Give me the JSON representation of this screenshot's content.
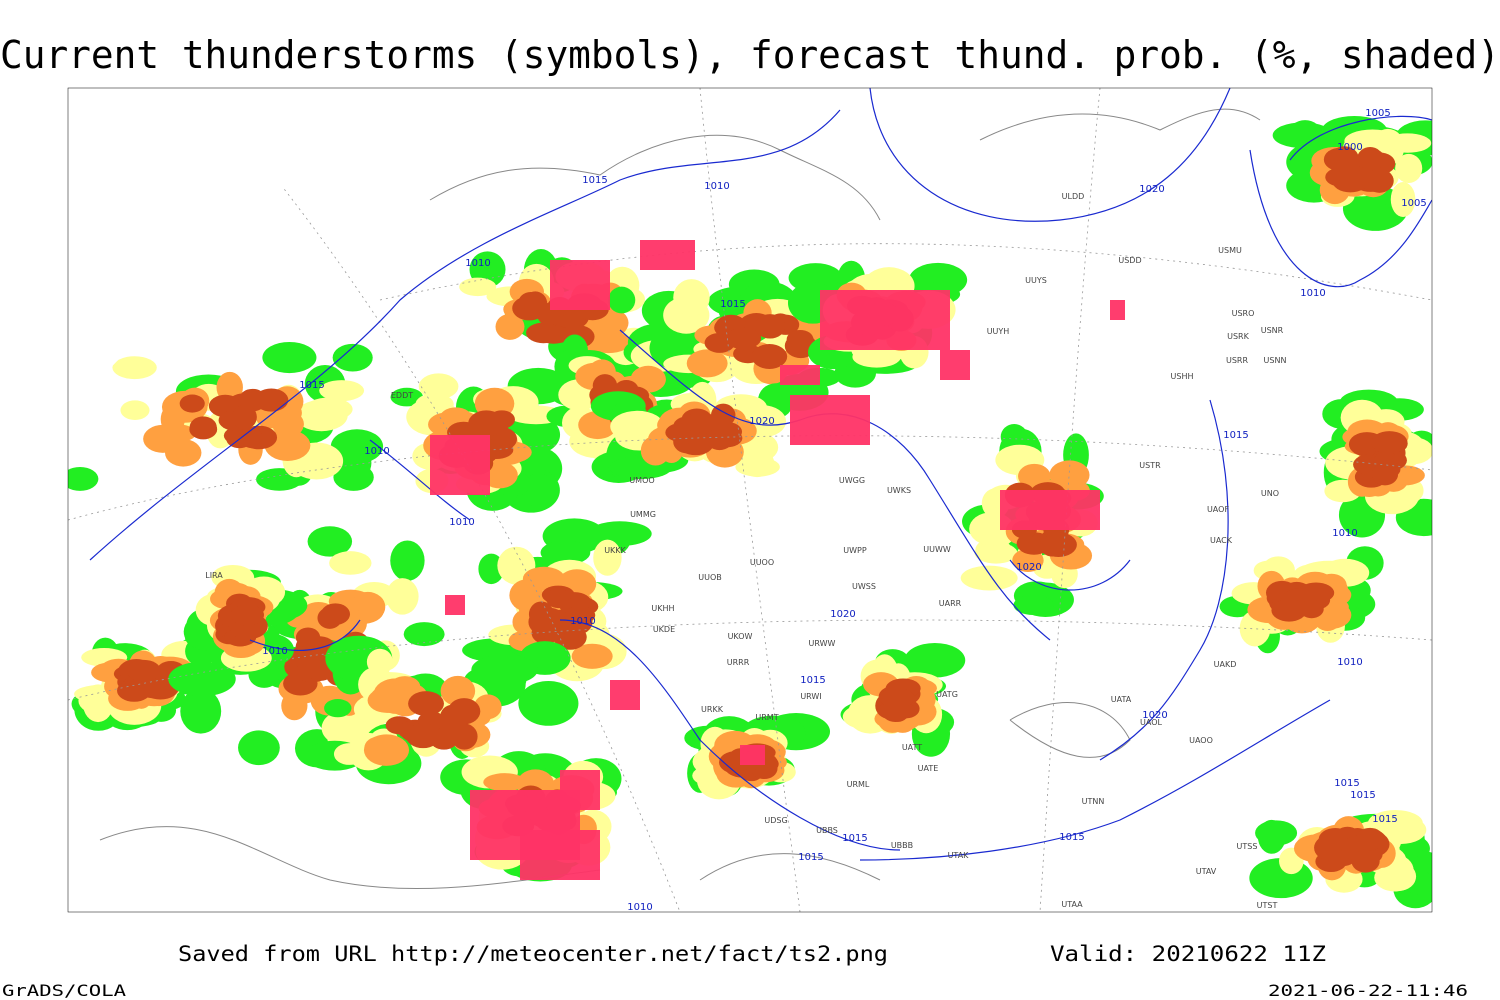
{
  "title": "Current thunderstorms (symbols), forecast thund. prob. (%, shaded)",
  "footer": {
    "source": "Saved from URL http://meteocenter.net/fact/ts2.png",
    "valid": "Valid: 20210622 11Z",
    "software": "GrADS/COLA",
    "timestamp": "2021-06-22-11:46"
  },
  "map": {
    "isobar_labels": [
      1015,
      1010,
      1020,
      1005,
      1000,
      1005,
      1010,
      1015,
      1010,
      1015,
      1020,
      1015,
      1010,
      1010,
      1010,
      1020,
      1010,
      1020,
      1010,
      1015,
      1010,
      1020,
      1015,
      1015,
      1015,
      1015,
      1015,
      1015,
      1010
    ],
    "station_labels": [
      "ULDD",
      "USMU",
      "USDD",
      "UUYS",
      "USRO",
      "USNR",
      "USRK",
      "UUYH",
      "USRR",
      "USNN",
      "USHH",
      "EDDT",
      "USTR",
      "UNO",
      "UUWW",
      "UWPP",
      "UUOO",
      "UWSS",
      "UARR",
      "UKHH",
      "UKDE",
      "UKOW",
      "URRR",
      "URWW",
      "URWI",
      "UATG",
      "UATA",
      "UAOL",
      "UAOO",
      "UAKD",
      "URKK",
      "URMT",
      "UATT",
      "UATE",
      "URML",
      "UTNN",
      "UBBB",
      "UTAK",
      "UTSS",
      "UTAV",
      "UTAA",
      "UTST",
      "LIRA",
      "UMMG",
      "UMOO",
      "UWGG",
      "UWKS",
      "UACK",
      "UAOF",
      "UUOB",
      "UKKK",
      "UDSG",
      "UBBS"
    ]
  }
}
